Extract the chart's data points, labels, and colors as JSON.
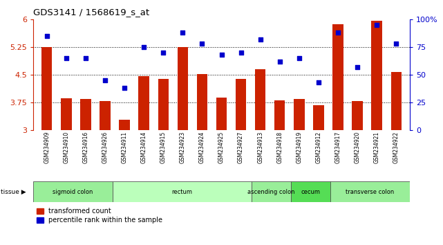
{
  "title": "GDS3141 / 1568619_s_at",
  "samples": [
    "GSM234909",
    "GSM234910",
    "GSM234916",
    "GSM234926",
    "GSM234911",
    "GSM234914",
    "GSM234915",
    "GSM234923",
    "GSM234924",
    "GSM234925",
    "GSM234927",
    "GSM234913",
    "GSM234918",
    "GSM234919",
    "GSM234912",
    "GSM234917",
    "GSM234920",
    "GSM234921",
    "GSM234922"
  ],
  "bar_values": [
    5.25,
    3.85,
    3.84,
    3.78,
    3.28,
    4.47,
    4.38,
    5.25,
    4.52,
    3.87,
    4.38,
    4.65,
    3.8,
    3.84,
    3.68,
    5.88,
    3.78,
    5.97,
    4.58
  ],
  "dot_values": [
    85,
    65,
    65,
    45,
    38,
    75,
    70,
    88,
    78,
    68,
    70,
    82,
    62,
    65,
    43,
    88,
    57,
    95,
    78
  ],
  "bar_color": "#cc2200",
  "dot_color": "#0000cc",
  "ylim_left": [
    3,
    6
  ],
  "ylim_right": [
    0,
    100
  ],
  "yticks_left": [
    3,
    3.75,
    4.5,
    5.25,
    6
  ],
  "ytick_labels_left": [
    "3",
    "3.75",
    "4.5",
    "5.25",
    "6"
  ],
  "yticks_right": [
    0,
    25,
    50,
    75,
    100
  ],
  "ytick_labels_right": [
    "0",
    "25",
    "50",
    "75",
    "100%"
  ],
  "hlines": [
    3.75,
    4.5,
    5.25
  ],
  "tissue_groups": [
    {
      "label": "sigmoid colon",
      "start": 0,
      "end": 4,
      "color": "#99ee99"
    },
    {
      "label": "rectum",
      "start": 4,
      "end": 11,
      "color": "#bbffbb"
    },
    {
      "label": "ascending colon",
      "start": 11,
      "end": 13,
      "color": "#99ee99"
    },
    {
      "label": "cecum",
      "start": 13,
      "end": 15,
      "color": "#55dd55"
    },
    {
      "label": "transverse colon",
      "start": 15,
      "end": 19,
      "color": "#99ee99"
    }
  ],
  "legend_bar_label": "transformed count",
  "legend_dot_label": "percentile rank within the sample",
  "tissue_label": "tissue",
  "background_color": "#ffffff",
  "left_axis_color": "#cc2200",
  "right_axis_color": "#0000cc",
  "xticklabel_bg": "#dddddd",
  "plot_bg": "#ffffff"
}
